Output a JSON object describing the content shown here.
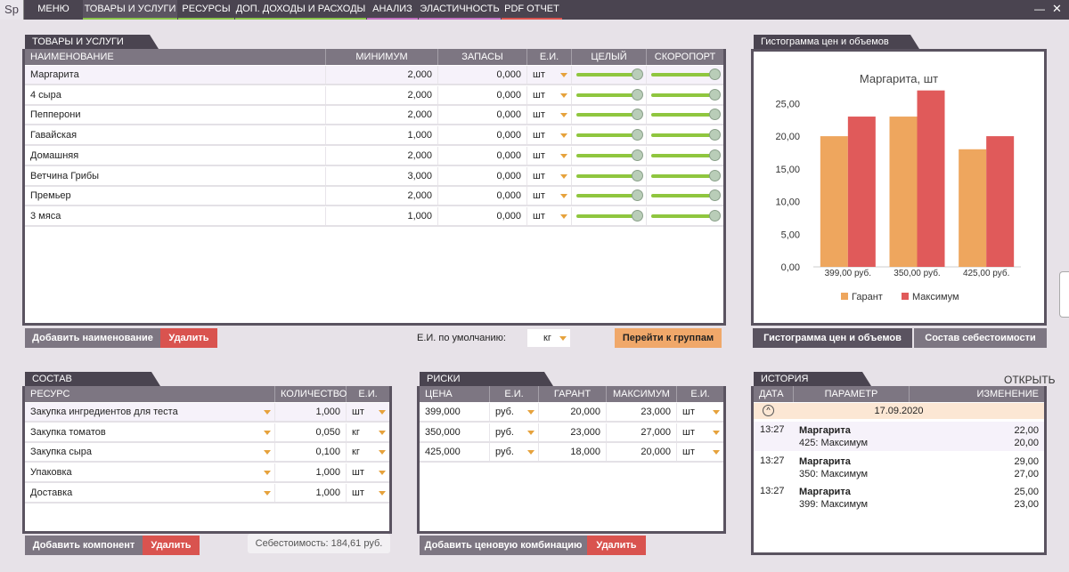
{
  "app": {
    "logo": "Sp"
  },
  "menu": [
    {
      "label": "МЕНЮ",
      "accent": ""
    },
    {
      "label": "ТОВАРЫ И УСЛУГИ",
      "accent": "#8bc34a"
    },
    {
      "label": "РЕСУРСЫ",
      "accent": "#8bc34a"
    },
    {
      "label": "ДОП. ДОХОДЫ И РАСХОДЫ",
      "accent": "#8bc34a"
    },
    {
      "label": "АНАЛИЗ",
      "accent": "#c070c0"
    },
    {
      "label": "ЭЛАСТИЧНОСТЬ",
      "accent": "#c070c0"
    },
    {
      "label": "PDF ОТЧЕТ",
      "accent": "#d9534f"
    }
  ],
  "window": {
    "minimize": "—",
    "close": "✕"
  },
  "goods": {
    "title": "ТОВАРЫ И УСЛУГИ",
    "columns": [
      "НАИМЕНОВАНИЕ",
      "МИНИМУМ",
      "ЗАПАСЫ",
      "Е.И.",
      "ЦЕЛЫЙ",
      "СКОРОПОРТ"
    ],
    "rows": [
      {
        "name": "Маргарита",
        "min": "2,000",
        "stock": "0,000",
        "unit": "шт"
      },
      {
        "name": "4 сыра",
        "min": "2,000",
        "stock": "0,000",
        "unit": "шт"
      },
      {
        "name": "Пепперони",
        "min": "2,000",
        "stock": "0,000",
        "unit": "шт"
      },
      {
        "name": "Гавайская",
        "min": "1,000",
        "stock": "0,000",
        "unit": "шт"
      },
      {
        "name": "Домашняя",
        "min": "2,000",
        "stock": "0,000",
        "unit": "шт"
      },
      {
        "name": "Ветчина Грибы",
        "min": "3,000",
        "stock": "0,000",
        "unit": "шт"
      },
      {
        "name": "Премьер",
        "min": "2,000",
        "stock": "0,000",
        "unit": "шт"
      },
      {
        "name": "3 мяса",
        "min": "1,000",
        "stock": "0,000",
        "unit": "шт"
      }
    ],
    "add_button": "Добавить наименование",
    "delete_button": "Удалить",
    "default_unit_label": "Е.И. по умолчанию:",
    "default_unit_value": "кг",
    "groups_button": "Перейти к группам"
  },
  "chart_tabs": {
    "active": "Гистограмма цен и объемов",
    "other": "Состав себестоимости"
  },
  "chart_data": {
    "type": "bar",
    "panel_title": "Гистограмма цен и объемов",
    "title": "Маргарита, шт",
    "categories": [
      "399,00 руб.",
      "350,00 руб.",
      "425,00 руб."
    ],
    "series": [
      {
        "name": "Гарант",
        "color": "#eea65e",
        "values": [
          20,
          23,
          18
        ]
      },
      {
        "name": "Максимум",
        "color": "#e05a5a",
        "values": [
          23,
          27,
          20
        ]
      }
    ],
    "ylim": [
      0,
      27.5
    ],
    "yticks": [
      "0,00",
      "5,00",
      "10,00",
      "15,00",
      "20,00",
      "25,00"
    ],
    "ytick_values": [
      0,
      5,
      10,
      15,
      20,
      25
    ],
    "legend": "bottom"
  },
  "composition": {
    "title": "СОСТАВ",
    "columns": [
      "РЕСУРС",
      "КОЛИЧЕСТВО",
      "Е.И."
    ],
    "rows": [
      {
        "resource": "Закупка ингредиентов для теста",
        "qty": "1,000",
        "unit": "шт"
      },
      {
        "resource": "Закупка томатов",
        "qty": "0,050",
        "unit": "кг"
      },
      {
        "resource": "Закупка сыра",
        "qty": "0,100",
        "unit": "кг"
      },
      {
        "resource": "Упаковка",
        "qty": "1,000",
        "unit": "шт"
      },
      {
        "resource": "Доставка",
        "qty": "1,000",
        "unit": "шт"
      }
    ],
    "add_button": "Добавить компонент",
    "delete_button": "Удалить",
    "cost_label": "Себестоимость: 184,61 руб."
  },
  "risks": {
    "title": "РИСКИ",
    "columns": [
      "ЦЕНА",
      "Е.И.",
      "ГАРАНТ",
      "МАКСИМУМ",
      "Е.И."
    ],
    "rows": [
      {
        "price": "399,000",
        "unit": "руб.",
        "guarant": "20,000",
        "max": "23,000",
        "unit2": "шт"
      },
      {
        "price": "350,000",
        "unit": "руб.",
        "guarant": "23,000",
        "max": "27,000",
        "unit2": "шт"
      },
      {
        "price": "425,000",
        "unit": "руб.",
        "guarant": "18,000",
        "max": "20,000",
        "unit2": "шт"
      }
    ],
    "add_button": "Добавить ценовую комбинацию",
    "delete_button": "Удалить"
  },
  "history": {
    "title": "ИСТОРИЯ",
    "open_link": "ОТКРЫТЬ",
    "columns": [
      "ДАТА",
      "ПАРАМЕТР",
      "ИЗМЕНЕНИЕ"
    ],
    "group_date": "17.09.2020",
    "entries": [
      {
        "time": "13:27",
        "item": "Маргарита",
        "param": "425: Максимум",
        "new": "22,00",
        "old": "20,00"
      },
      {
        "time": "13:27",
        "item": "Маргарита",
        "param": "350: Максимум",
        "new": "29,00",
        "old": "27,00"
      },
      {
        "time": "13:27",
        "item": "Маргарита",
        "param": "399: Максимум",
        "new": "25,00",
        "old": "23,00"
      }
    ]
  }
}
